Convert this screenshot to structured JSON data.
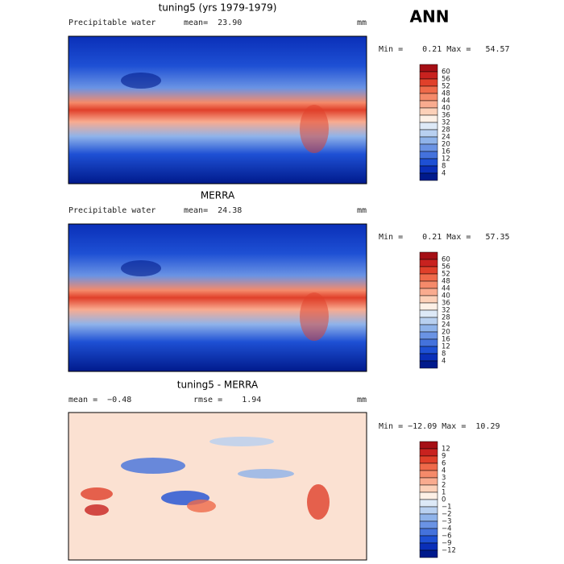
{
  "header": {
    "season": "ANN"
  },
  "palette": [
    "#a50f15",
    "#c8221f",
    "#e0402a",
    "#ef6a4a",
    "#f58a6a",
    "#f9ab8f",
    "#fcd0b8",
    "#fdf0e6",
    "#dde9f7",
    "#b8d0f0",
    "#8fb3ea",
    "#6a93e4",
    "#4472dc",
    "#1e50d4",
    "#0a2fb8",
    "#001a8c"
  ],
  "panels": [
    {
      "title": "tuning5 (yrs 1979-1979)",
      "variable": "Precipitable water",
      "stats": [
        "mean=  23.90"
      ],
      "units": "mm",
      "range": "Min =    0.21 Max =   54.57",
      "levels": [
        "60",
        "56",
        "52",
        "48",
        "44",
        "40",
        "36",
        "32",
        "28",
        "24",
        "20",
        "16",
        "12",
        "8",
        "4"
      ]
    },
    {
      "title": "MERRA",
      "variable": "Precipitable water",
      "stats": [
        "mean=  24.38"
      ],
      "units": "mm",
      "range": "Min =    0.21 Max =   57.35",
      "levels": [
        "60",
        "56",
        "52",
        "48",
        "44",
        "40",
        "36",
        "32",
        "28",
        "24",
        "20",
        "16",
        "12",
        "8",
        "4"
      ]
    },
    {
      "title": "tuning5 - MERRA",
      "stats": [
        "mean =  −0.48",
        "rmse =    1.94"
      ],
      "units": "mm",
      "range": "Min = −12.09 Max =  10.29",
      "levels": [
        "12",
        "9",
        "6",
        "4",
        "3",
        "2",
        "1",
        "0",
        "−1",
        "−2",
        "−3",
        "−4",
        "−6",
        "−9",
        "−12"
      ]
    }
  ]
}
